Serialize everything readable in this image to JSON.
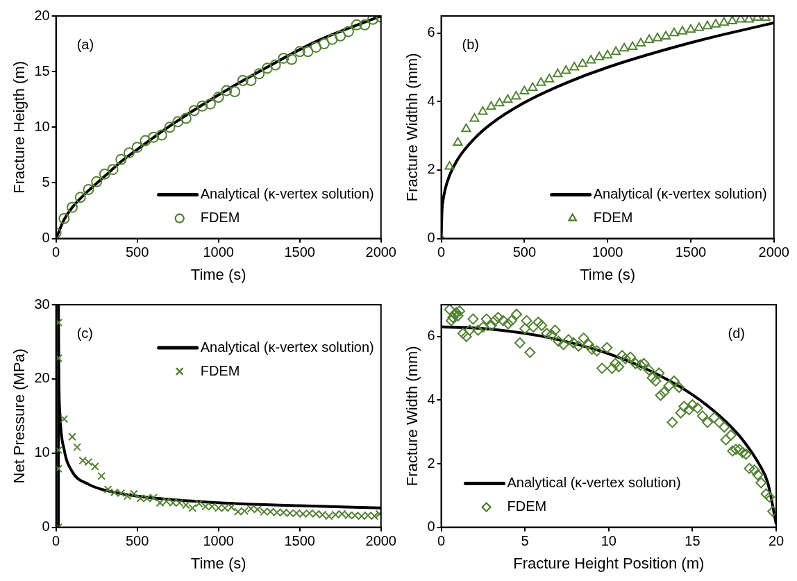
{
  "chart_data": [
    {
      "type": "scatter",
      "xlabel": "Time (s)",
      "ylabel": "Fracture Heigth (m)",
      "xlim": [
        0,
        2000
      ],
      "xticks": [
        0,
        500,
        1000,
        1500,
        2000
      ],
      "ylim": [
        0,
        20
      ],
      "yticks": [
        0,
        5,
        10,
        15,
        20
      ],
      "legend": "bottom right",
      "annotations": [
        "(a)"
      ],
      "series": [
        {
          "name": "Analytical (κ-vertex solution)",
          "type": "line",
          "color": "#000000",
          "marker": "none",
          "x": [
            0,
            50,
            100,
            200,
            300,
            400,
            500,
            700,
            1000,
            1300,
            1600,
            2000
          ],
          "values": [
            0,
            1.7,
            2.8,
            4.3,
            5.6,
            6.9,
            8.0,
            10.1,
            12.9,
            15.4,
            17.7,
            20.0
          ]
        },
        {
          "name": "FDEM",
          "type": "scatter",
          "color": "#548235",
          "marker": "circle",
          "x": [
            0,
            50,
            100,
            150,
            200,
            250,
            300,
            350,
            400,
            450,
            500,
            550,
            600,
            650,
            700,
            750,
            800,
            850,
            900,
            950,
            1000,
            1050,
            1100,
            1150,
            1200,
            1250,
            1300,
            1350,
            1400,
            1450,
            1500,
            1550,
            1600,
            1650,
            1700,
            1750,
            1800,
            1850,
            1900,
            1950,
            2000
          ],
          "values": [
            0.5,
            1.8,
            2.8,
            3.7,
            4.4,
            5.1,
            5.8,
            6.2,
            7.1,
            7.7,
            8.2,
            8.8,
            9.1,
            9.3,
            10.0,
            10.5,
            10.8,
            11.5,
            11.9,
            12.1,
            12.7,
            13.3,
            13.2,
            14.2,
            14.2,
            14.8,
            15.3,
            15.6,
            16.2,
            16.1,
            16.8,
            16.8,
            17.2,
            17.5,
            17.9,
            18.2,
            18.6,
            19.2,
            19.2,
            19.7,
            19.9
          ]
        }
      ]
    },
    {
      "type": "scatter",
      "xlabel": "Time (s)",
      "ylabel": "Fracture Widthh (mm)",
      "xlim": [
        0,
        2000
      ],
      "xticks": [
        0,
        500,
        1000,
        1500,
        2000
      ],
      "ylim": [
        0,
        6.5
      ],
      "yticks": [
        0,
        2,
        4,
        6
      ],
      "legend": "bottom right",
      "annotations": [
        "(b)"
      ],
      "series": [
        {
          "name": "Analytical (κ-vertex solution)",
          "type": "line",
          "color": "#000000",
          "marker": "none",
          "x": [
            0,
            5,
            10,
            25,
            50,
            100,
            200,
            300,
            500,
            750,
            1000,
            1500,
            2000
          ],
          "values": [
            0,
            0.85,
            1.08,
            1.46,
            1.84,
            2.32,
            2.92,
            3.35,
            3.97,
            4.54,
            5.0,
            5.72,
            6.3
          ]
        },
        {
          "name": "FDEM",
          "type": "scatter",
          "color": "#548235",
          "marker": "triangle",
          "x": [
            0,
            50,
            100,
            150,
            200,
            250,
            300,
            350,
            400,
            450,
            500,
            550,
            600,
            650,
            700,
            750,
            800,
            850,
            900,
            950,
            1000,
            1050,
            1100,
            1150,
            1200,
            1250,
            1300,
            1350,
            1400,
            1450,
            1500,
            1550,
            1600,
            1650,
            1700,
            1750,
            1800,
            1850,
            1900,
            1950
          ],
          "values": [
            0,
            2.1,
            2.8,
            3.2,
            3.5,
            3.7,
            3.85,
            3.95,
            4.05,
            4.15,
            4.3,
            4.4,
            4.55,
            4.65,
            4.8,
            4.9,
            5.0,
            5.1,
            5.2,
            5.3,
            5.35,
            5.45,
            5.55,
            5.6,
            5.7,
            5.8,
            5.85,
            5.9,
            6.0,
            6.05,
            6.1,
            6.15,
            6.2,
            6.25,
            6.3,
            6.35,
            6.4,
            6.4,
            6.45,
            6.45
          ]
        }
      ]
    },
    {
      "type": "scatter",
      "xlabel": "Time (s)",
      "ylabel": "Net Pressure (MPa)",
      "xlim": [
        0,
        2000
      ],
      "xticks": [
        0,
        500,
        1000,
        1500,
        2000
      ],
      "ylim": [
        0,
        30
      ],
      "yticks": [
        0,
        10,
        20,
        30
      ],
      "legend": "top right",
      "annotations": [
        "(c)"
      ],
      "series": [
        {
          "name": "Analytical (κ-vertex solution)",
          "type": "line",
          "color": "#000000",
          "marker": "none",
          "x": [
            15,
            15,
            18,
            25,
            50,
            100,
            200,
            300,
            500,
            1000,
            1500,
            2000
          ],
          "values": [
            0,
            30,
            20,
            15,
            10.5,
            7.5,
            5.8,
            5.0,
            4.2,
            3.3,
            2.9,
            2.6
          ]
        },
        {
          "name": "FDEM",
          "type": "scatter",
          "color": "#548235",
          "marker": "cross",
          "x": [
            15,
            15,
            15,
            15,
            15,
            50,
            100,
            130,
            165,
            200,
            240,
            280,
            320,
            360,
            400,
            440,
            480,
            520,
            560,
            600,
            640,
            680,
            720,
            760,
            800,
            840,
            880,
            920,
            960,
            1000,
            1040,
            1080,
            1120,
            1160,
            1200,
            1240,
            1280,
            1320,
            1360,
            1400,
            1440,
            1480,
            1520,
            1560,
            1600,
            1640,
            1680,
            1720,
            1760,
            1800,
            1840,
            1880,
            1920,
            1960,
            1990
          ],
          "values": [
            27.6,
            22.8,
            10.4,
            7.9,
            0,
            14.6,
            12.2,
            10.8,
            9.0,
            8.8,
            8.2,
            6.9,
            5.1,
            4.7,
            4.6,
            4.2,
            4.5,
            3.9,
            3.9,
            4.0,
            3.3,
            3.5,
            3.3,
            3.3,
            3.0,
            2.6,
            3.2,
            2.8,
            2.8,
            2.6,
            2.6,
            2.7,
            2.1,
            2.2,
            2.5,
            2.4,
            2.1,
            2.1,
            2.0,
            2.0,
            1.9,
            1.9,
            1.8,
            1.9,
            1.8,
            1.7,
            1.5,
            1.7,
            1.8,
            1.6,
            1.6,
            1.5,
            1.6,
            1.5,
            1.8
          ]
        }
      ]
    },
    {
      "type": "scatter",
      "xlabel": "Fracture Height Position (m)",
      "ylabel": "Fracture Width (mm)",
      "xlim": [
        0,
        20
      ],
      "xticks": [
        0,
        5,
        10,
        15,
        20
      ],
      "ylim": [
        0,
        7
      ],
      "yticks": [
        0,
        2,
        4,
        6
      ],
      "legend": "bottom left",
      "annotations": [
        "(d)"
      ],
      "series": [
        {
          "name": "Analytical (κ-vertex solution)",
          "type": "line",
          "color": "#000000",
          "marker": "none",
          "x": [
            0,
            2,
            4,
            6,
            8,
            10,
            12,
            14,
            15,
            16,
            17,
            18,
            19,
            19.5,
            20
          ],
          "values": [
            6.3,
            6.27,
            6.17,
            6.01,
            5.77,
            5.46,
            5.04,
            4.5,
            4.17,
            3.78,
            3.32,
            2.75,
            1.97,
            1.4,
            0.1
          ]
        },
        {
          "name": "FDEM",
          "type": "scatter",
          "color": "#548235",
          "marker": "diamond",
          "x": [
            0.5,
            0.6,
            0.7,
            0.8,
            0.9,
            1.0,
            1.1,
            1.3,
            1.5,
            1.7,
            1.9,
            2.2,
            2.5,
            2.7,
            3.0,
            3.2,
            3.4,
            3.7,
            4.0,
            4.2,
            4.5,
            4.7,
            5.0,
            5.1,
            5.3,
            5.5,
            5.8,
            6.0,
            6.3,
            6.6,
            6.8,
            7.0,
            7.3,
            7.6,
            7.9,
            8.2,
            8.5,
            8.8,
            9.0,
            9.3,
            9.6,
            9.9,
            10.2,
            10.4,
            10.6,
            10.8,
            11.0,
            11.3,
            11.6,
            11.9,
            12.1,
            12.4,
            12.6,
            12.8,
            13.0,
            13.1,
            13.3,
            13.6,
            13.9,
            14.2,
            13.8,
            14.3,
            14.5,
            14.8,
            15.0,
            15.3,
            15.6,
            15.9,
            16.3,
            16.6,
            16.9,
            17.0,
            17.3,
            17.4,
            17.6,
            17.8,
            18.0,
            18.2,
            18.4,
            18.7,
            18.9,
            19.1,
            19.4,
            19.6,
            19.8
          ],
          "values": [
            6.85,
            6.5,
            6.6,
            6.7,
            6.75,
            6.65,
            6.8,
            6.1,
            6.0,
            6.2,
            6.55,
            6.2,
            6.3,
            6.55,
            6.35,
            6.5,
            6.6,
            6.5,
            6.4,
            6.5,
            6.7,
            5.8,
            6.25,
            6.5,
            5.5,
            6.3,
            6.45,
            6.35,
            6.1,
            6.05,
            6.2,
            5.85,
            5.75,
            5.9,
            5.8,
            5.7,
            5.95,
            5.75,
            5.6,
            5.55,
            5.0,
            5.65,
            5.0,
            5.15,
            5.05,
            5.4,
            5.3,
            5.35,
            5.15,
            5.1,
            5.15,
            4.95,
            4.7,
            4.6,
            4.85,
            4.15,
            4.25,
            4.45,
            4.6,
            4.4,
            3.3,
            3.6,
            3.8,
            3.7,
            3.85,
            3.75,
            3.5,
            3.3,
            3.45,
            3.3,
            3.15,
            2.75,
            2.9,
            2.4,
            2.45,
            2.45,
            2.35,
            2.3,
            1.85,
            1.8,
            1.65,
            1.4,
            1.05,
            0.95,
            0.5
          ]
        }
      ]
    }
  ]
}
